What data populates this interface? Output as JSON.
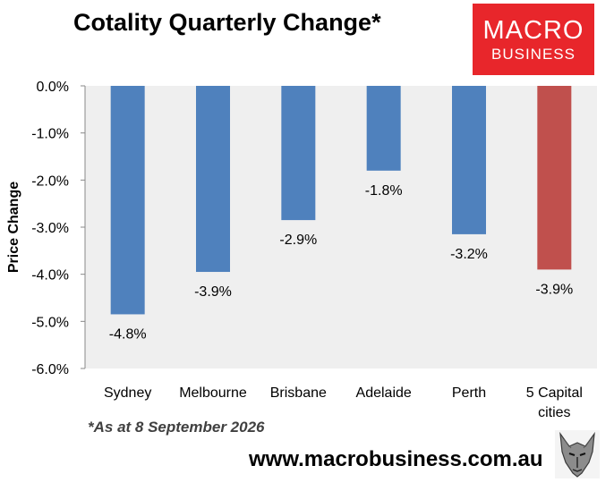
{
  "title": "Cotality Quarterly Change*",
  "logo": {
    "line1": "MACRO",
    "line2": "BUSINESS"
  },
  "footnote": "*As at 8 September 2026",
  "url": "www.macrobusiness.com.au",
  "chart_data": {
    "type": "bar",
    "title": "Cotality Quarterly Change*",
    "xlabel": "",
    "ylabel": "Price Change",
    "ylim": [
      -6.0,
      0.0
    ],
    "yticks": [
      "0.0%",
      "-1.0%",
      "-2.0%",
      "-3.0%",
      "-4.0%",
      "-5.0%",
      "-6.0%"
    ],
    "ytick_values": [
      0,
      -1,
      -2,
      -3,
      -4,
      -5,
      -6
    ],
    "categories": [
      [
        "Sydney"
      ],
      [
        "Melbourne"
      ],
      [
        "Brisbane"
      ],
      [
        "Adelaide"
      ],
      [
        "Perth"
      ],
      [
        "5 Capital",
        "cities"
      ]
    ],
    "values": [
      -4.85,
      -3.95,
      -2.85,
      -1.8,
      -3.15,
      -3.9
    ],
    "data_labels": [
      "-4.8%",
      "-3.9%",
      "-2.9%",
      "-1.8%",
      "-3.2%",
      "-3.9%"
    ],
    "colors": [
      "#4f81bd",
      "#4f81bd",
      "#4f81bd",
      "#4f81bd",
      "#4f81bd",
      "#c0504d"
    ],
    "plot_background": "#efefef",
    "grid": false,
    "legend": false
  }
}
